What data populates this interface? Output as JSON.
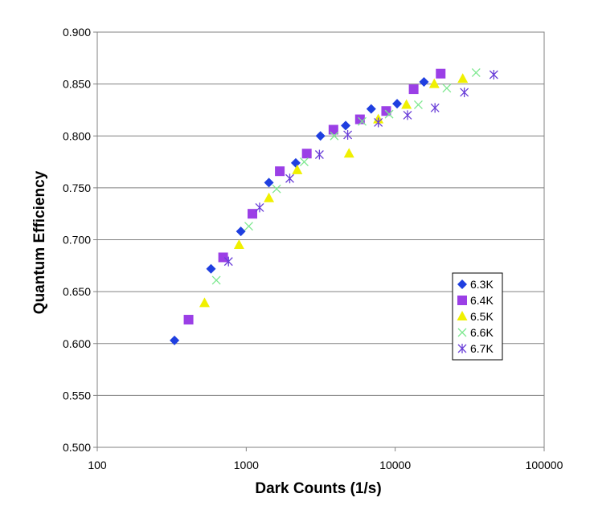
{
  "chart_data": {
    "type": "scatter",
    "title": "",
    "xlabel": "Dark Counts (1/s)",
    "ylabel": "Quantum Efficiency",
    "x_scale": "log",
    "xlim": [
      100,
      100000
    ],
    "ylim": [
      0.5,
      0.9
    ],
    "x_ticks": [
      100,
      1000,
      10000,
      100000
    ],
    "x_tick_labels": [
      "100",
      "1000",
      "10000",
      "100000"
    ],
    "y_ticks": [
      0.5,
      0.55,
      0.6,
      0.65,
      0.7,
      0.75,
      0.8,
      0.85,
      0.9
    ],
    "y_tick_labels": [
      "0.500",
      "0.550",
      "0.600",
      "0.650",
      "0.700",
      "0.750",
      "0.800",
      "0.850",
      "0.900"
    ],
    "grid": "horizontal",
    "legend_position": "right",
    "series": [
      {
        "name": "6.3K",
        "marker": "diamond",
        "color": "#1f3fe0",
        "points": [
          [
            330,
            0.603
          ],
          [
            580,
            0.672
          ],
          [
            920,
            0.708
          ],
          [
            1420,
            0.755
          ],
          [
            2150,
            0.774
          ],
          [
            3150,
            0.8
          ],
          [
            4650,
            0.81
          ],
          [
            6900,
            0.826
          ],
          [
            10300,
            0.831
          ],
          [
            15600,
            0.852
          ]
        ]
      },
      {
        "name": "6.4K",
        "marker": "square",
        "color": "#9b3fe6",
        "points": [
          [
            410,
            0.623
          ],
          [
            700,
            0.683
          ],
          [
            1100,
            0.725
          ],
          [
            1680,
            0.766
          ],
          [
            2550,
            0.783
          ],
          [
            3850,
            0.806
          ],
          [
            5800,
            0.816
          ],
          [
            8700,
            0.824
          ],
          [
            13300,
            0.845
          ],
          [
            20200,
            0.86
          ]
        ]
      },
      {
        "name": "6.5K",
        "marker": "triangle",
        "color": "#f0f000",
        "points": [
          [
            525,
            0.639
          ],
          [
            895,
            0.695
          ],
          [
            1420,
            0.74
          ],
          [
            2200,
            0.767
          ],
          [
            4900,
            0.783
          ],
          [
            7700,
            0.816
          ],
          [
            11900,
            0.83
          ],
          [
            18300,
            0.85
          ],
          [
            28400,
            0.855
          ]
        ]
      },
      {
        "name": "6.6K",
        "marker": "x",
        "color": "#7de88f",
        "points": [
          [
            630,
            0.661
          ],
          [
            1040,
            0.713
          ],
          [
            1600,
            0.749
          ],
          [
            2450,
            0.775
          ],
          [
            3900,
            0.8
          ],
          [
            6000,
            0.814
          ],
          [
            9100,
            0.821
          ],
          [
            14300,
            0.83
          ],
          [
            22200,
            0.846
          ],
          [
            34900,
            0.861
          ]
        ]
      },
      {
        "name": "6.7K",
        "marker": "asterisk",
        "color": "#6a3fd8",
        "points": [
          [
            760,
            0.679
          ],
          [
            1230,
            0.731
          ],
          [
            1960,
            0.759
          ],
          [
            3100,
            0.782
          ],
          [
            4800,
            0.801
          ],
          [
            7700,
            0.813
          ],
          [
            12100,
            0.82
          ],
          [
            18500,
            0.827
          ],
          [
            29100,
            0.842
          ],
          [
            45900,
            0.859
          ]
        ]
      }
    ]
  }
}
